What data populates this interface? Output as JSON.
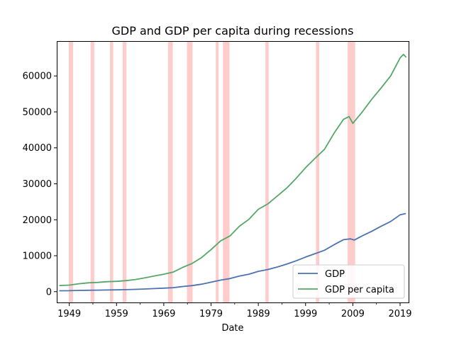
{
  "chart_data": {
    "type": "line",
    "title": "GDP and GDP per capita during recessions",
    "xlabel": "Date",
    "ylabel": "",
    "xlim": [
      1946.5,
      2020.8
    ],
    "ylim": [
      -3000,
      69500
    ],
    "x_ticks": [
      1949,
      1959,
      1969,
      1979,
      1989,
      1999,
      2009,
      2019
    ],
    "y_ticks": [
      0,
      10000,
      20000,
      30000,
      40000,
      50000,
      60000
    ],
    "legend_position": "lower-right",
    "recessions": [
      [
        1948.9,
        1949.8
      ],
      [
        1953.5,
        1954.3
      ],
      [
        1957.6,
        1958.3
      ],
      [
        1960.3,
        1961.1
      ],
      [
        1969.9,
        1970.9
      ],
      [
        1973.9,
        1975.1
      ],
      [
        1980.0,
        1980.6
      ],
      [
        1981.5,
        1982.9
      ],
      [
        1990.5,
        1991.2
      ],
      [
        2001.2,
        2001.9
      ],
      [
        2007.9,
        2009.5
      ]
    ],
    "series": [
      {
        "name": "GDP",
        "color": "#4c72b0",
        "points": [
          [
            1947,
            244
          ],
          [
            1949,
            272
          ],
          [
            1951,
            340
          ],
          [
            1953,
            390
          ],
          [
            1955,
            425
          ],
          [
            1957,
            475
          ],
          [
            1959,
            510
          ],
          [
            1961,
            565
          ],
          [
            1963,
            640
          ],
          [
            1965,
            745
          ],
          [
            1967,
            862
          ],
          [
            1969,
            985
          ],
          [
            1971,
            1127
          ],
          [
            1973,
            1426
          ],
          [
            1975,
            1690
          ],
          [
            1977,
            2086
          ],
          [
            1979,
            2632
          ],
          [
            1981,
            3207
          ],
          [
            1983,
            3634
          ],
          [
            1985,
            4339
          ],
          [
            1987,
            4870
          ],
          [
            1989,
            5641
          ],
          [
            1991,
            6158
          ],
          [
            1993,
            6858
          ],
          [
            1995,
            7664
          ],
          [
            1997,
            8577
          ],
          [
            1999,
            9631
          ],
          [
            2001,
            10582
          ],
          [
            2003,
            11511
          ],
          [
            2005,
            13039
          ],
          [
            2007,
            14452
          ],
          [
            2008.5,
            14700
          ],
          [
            2009.3,
            14350
          ],
          [
            2011,
            15543
          ],
          [
            2013,
            16785
          ],
          [
            2015,
            18225
          ],
          [
            2017,
            19519
          ],
          [
            2019,
            21373
          ],
          [
            2020.1,
            21700
          ]
        ]
      },
      {
        "name": "GDP per capita",
        "color": "#55a868",
        "points": [
          [
            1947,
            1700
          ],
          [
            1949,
            1820
          ],
          [
            1951,
            2200
          ],
          [
            1953,
            2450
          ],
          [
            1955,
            2580
          ],
          [
            1957,
            2770
          ],
          [
            1959,
            2880
          ],
          [
            1961,
            3060
          ],
          [
            1963,
            3380
          ],
          [
            1965,
            3830
          ],
          [
            1967,
            4360
          ],
          [
            1969,
            4860
          ],
          [
            1971,
            5450
          ],
          [
            1973,
            6750
          ],
          [
            1975,
            7850
          ],
          [
            1977,
            9500
          ],
          [
            1979,
            11700
          ],
          [
            1981,
            14100
          ],
          [
            1983,
            15500
          ],
          [
            1985,
            18200
          ],
          [
            1987,
            20100
          ],
          [
            1989,
            22900
          ],
          [
            1991,
            24400
          ],
          [
            1993,
            26600
          ],
          [
            1995,
            28800
          ],
          [
            1997,
            31500
          ],
          [
            1999,
            34500
          ],
          [
            2001,
            37100
          ],
          [
            2003,
            39600
          ],
          [
            2005,
            44000
          ],
          [
            2007,
            47900
          ],
          [
            2008.2,
            48700
          ],
          [
            2009.0,
            46800
          ],
          [
            2011,
            50000
          ],
          [
            2013,
            53500
          ],
          [
            2015,
            56700
          ],
          [
            2017,
            60000
          ],
          [
            2019,
            65000
          ],
          [
            2019.7,
            66000
          ],
          [
            2020.2,
            65300
          ]
        ]
      }
    ]
  }
}
